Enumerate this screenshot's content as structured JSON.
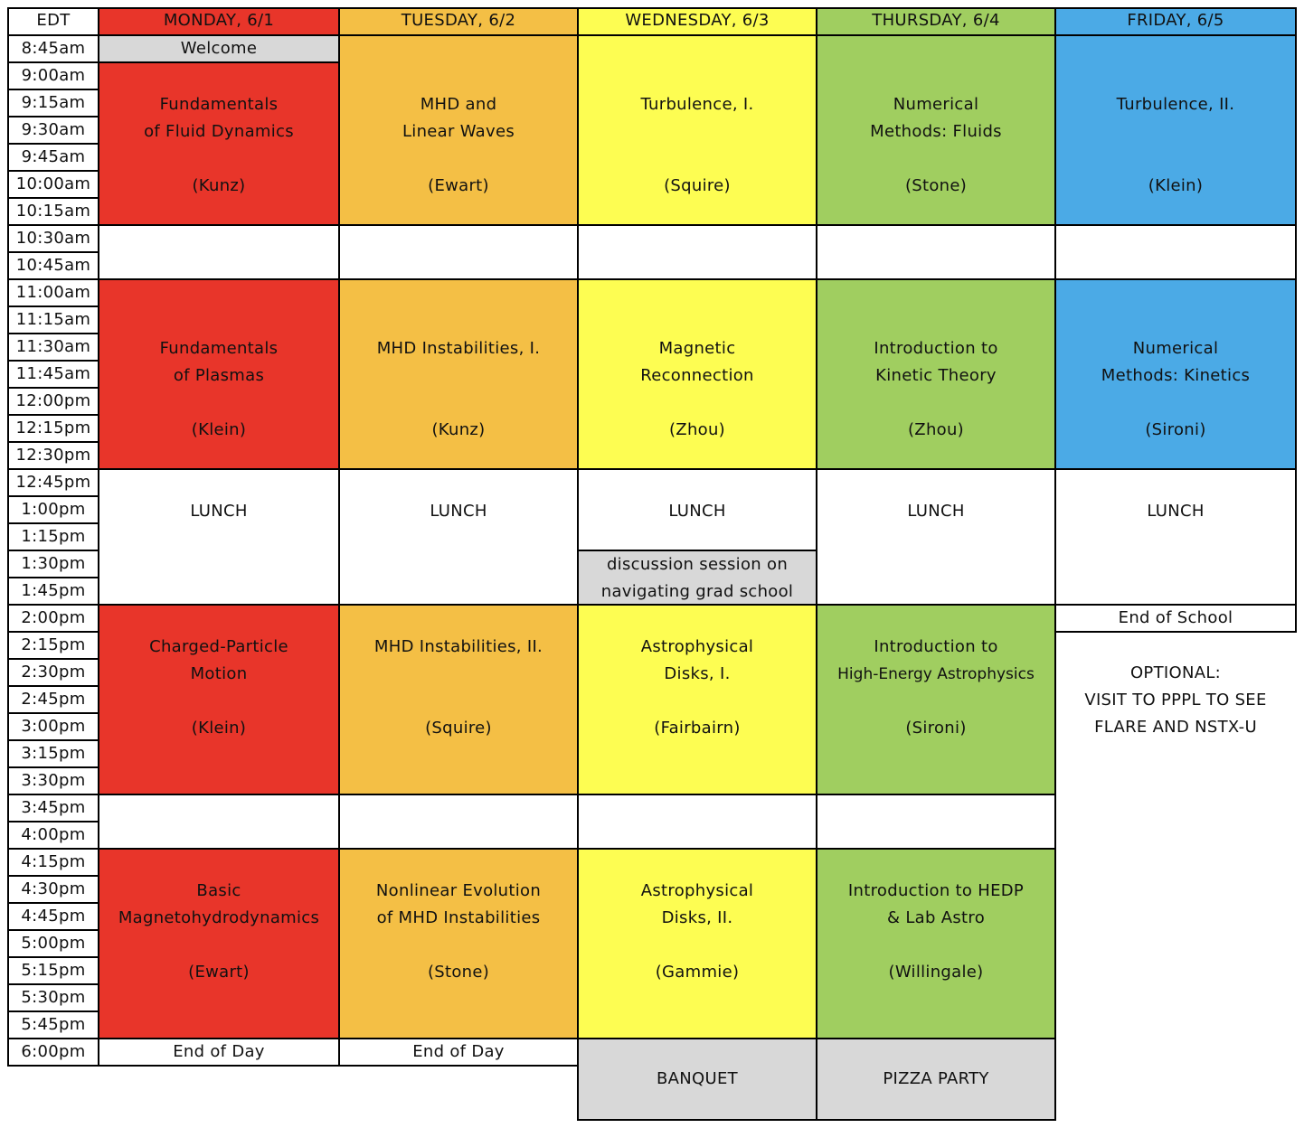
{
  "header": {
    "edt": "EDT",
    "monday": "MONDAY, 6/1",
    "tuesday": "TUESDAY, 6/2",
    "wednesday": "WEDNESDAY, 6/3",
    "thursday": "THURSDAY, 6/4",
    "friday": "FRIDAY, 6/5"
  },
  "colors": {
    "monday": "#e8352a",
    "tuesday": "#f4bf45",
    "wednesday": "#fdfd52",
    "thursday": "#a0ce60",
    "friday": "#4baae6",
    "gray": "#d8d8d8"
  },
  "times": [
    "8:45am",
    "9:00am",
    "9:15am",
    "9:30am",
    "9:45am",
    "10:00am",
    "10:15am",
    "10:30am",
    "10:45am",
    "11:00am",
    "11:15am",
    "11:30am",
    "11:45am",
    "12:00pm",
    "12:15pm",
    "12:30pm",
    "12:45pm",
    "1:00pm",
    "1:15pm",
    "1:30pm",
    "1:45pm",
    "2:00pm",
    "2:15pm",
    "2:30pm",
    "2:45pm",
    "3:00pm",
    "3:15pm",
    "3:30pm",
    "3:45pm",
    "4:00pm",
    "4:15pm",
    "4:30pm",
    "4:45pm",
    "5:00pm",
    "5:15pm",
    "5:30pm",
    "5:45pm",
    "6:00pm"
  ],
  "monday": {
    "welcome": "Welcome",
    "s1": {
      "line1": "Fundamentals",
      "line2": "of Fluid Dynamics",
      "speaker": "(Kunz)"
    },
    "s2": {
      "line1": "Fundamentals",
      "line2": "of Plasmas",
      "speaker": "(Klein)"
    },
    "lunch": "LUNCH",
    "s3": {
      "line1": "Charged-Particle",
      "line2": "Motion",
      "speaker": "(Klein)"
    },
    "s4": {
      "line1": "Basic",
      "line2": "Magnetohydrodynamics",
      "speaker": "(Ewart)"
    },
    "end": "End of Day"
  },
  "tuesday": {
    "s1": {
      "line1": "MHD and",
      "line2": "Linear Waves",
      "speaker": "(Ewart)"
    },
    "s2": {
      "line1": "MHD Instabilities, I.",
      "speaker": "(Kunz)"
    },
    "lunch": "LUNCH",
    "s3": {
      "line1": "MHD Instabilities, II.",
      "speaker": "(Squire)"
    },
    "s4": {
      "line1": "Nonlinear Evolution",
      "line2": "of MHD Instabilities",
      "speaker": "(Stone)"
    },
    "end": "End of Day"
  },
  "wednesday": {
    "s1": {
      "line1": "Turbulence, I.",
      "speaker": "(Squire)"
    },
    "s2": {
      "line1": "Magnetic",
      "line2": "Reconnection",
      "speaker": "(Zhou)"
    },
    "lunch": "LUNCH",
    "discussion": {
      "line1": "discussion session on",
      "line2": "navigating grad school"
    },
    "s3": {
      "line1": "Astrophysical",
      "line2": "Disks, I.",
      "speaker": "(Fairbairn)"
    },
    "s4": {
      "line1": "Astrophysical",
      "line2": "Disks, II.",
      "speaker": "(Gammie)"
    },
    "evening": "BANQUET"
  },
  "thursday": {
    "s1": {
      "line1": "Numerical",
      "line2": "Methods: Fluids",
      "speaker": "(Stone)"
    },
    "s2": {
      "line1": "Introduction to",
      "line2": "Kinetic Theory",
      "speaker": "(Zhou)"
    },
    "lunch": "LUNCH",
    "s3": {
      "line1": "Introduction to",
      "line2": "High-Energy Astrophysics",
      "speaker": "(Sironi)"
    },
    "s4": {
      "line1": "Introduction to HEDP",
      "line2": "& Lab Astro",
      "speaker": "(Willingale)"
    },
    "evening": "PIZZA PARTY"
  },
  "friday": {
    "s1": {
      "line1": "Turbulence, II.",
      "speaker": "(Klein)"
    },
    "s2": {
      "line1": "Numerical",
      "line2": "Methods: Kinetics",
      "speaker": "(Sironi)"
    },
    "lunch": "LUNCH",
    "end": "End of School",
    "optional": {
      "line1": "OPTIONAL:",
      "line2": "VISIT TO PPPL TO SEE",
      "line3": "FLARE AND NSTX-U"
    }
  }
}
